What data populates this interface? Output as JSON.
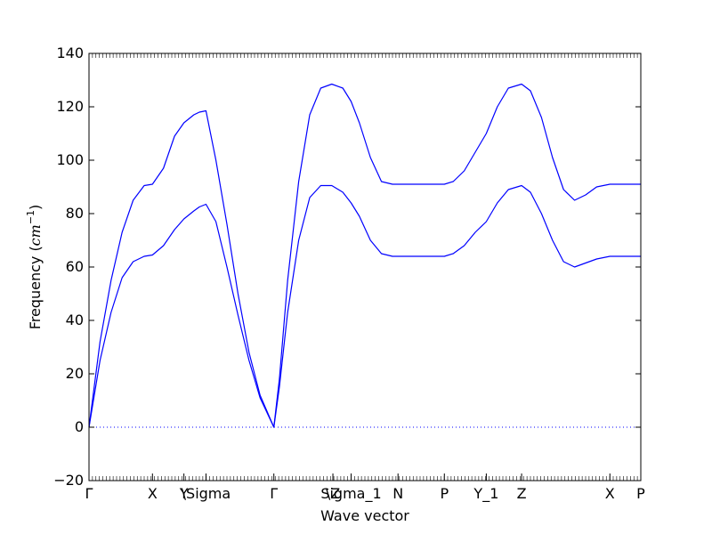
{
  "chart_data": {
    "type": "line",
    "xlabel": "Wave vector",
    "ylabel": "Frequency (",
    "ylabel_unit_base": "cm",
    "ylabel_unit_exp": "−1",
    "ylabel_close": ")",
    "ylim": [
      -20,
      140
    ],
    "yticks": [
      -20,
      0,
      20,
      40,
      60,
      80,
      100,
      120,
      140
    ],
    "x_ticks": [
      {
        "label": "Γ",
        "x": 0.0
      },
      {
        "label": "X",
        "x": 0.115
      },
      {
        "label": "Y",
        "x": 0.172
      },
      {
        "label": "\\Sigma",
        "x": 0.212
      },
      {
        "label": "Γ",
        "x": 0.335
      },
      {
        "label": "\\Z",
        "x": 0.442
      },
      {
        "label": "Sigma_1",
        "x": 0.475
      },
      {
        "label": "N",
        "x": 0.56
      },
      {
        "label": "P",
        "x": 0.644
      },
      {
        "label": "Y_1",
        "x": 0.72
      },
      {
        "label": "Z",
        "x": 0.784
      },
      {
        "label": "X",
        "x": 0.944
      },
      {
        "label": "P",
        "x": 1.0
      }
    ],
    "xlim": [
      0,
      1
    ],
    "zero_line": true,
    "series_color": "#0000ff",
    "series": [
      {
        "x": [
          0.0,
          0.02,
          0.04,
          0.06,
          0.08,
          0.1,
          0.115,
          0.135,
          0.155,
          0.172,
          0.19,
          0.2,
          0.212,
          0.23,
          0.25,
          0.27,
          0.29,
          0.31,
          0.335,
          0.345,
          0.36,
          0.38,
          0.4,
          0.42,
          0.44,
          0.46,
          0.475,
          0.49,
          0.51,
          0.53,
          0.55,
          0.56,
          0.6,
          0.644,
          0.66,
          0.68,
          0.7,
          0.72,
          0.74,
          0.76,
          0.784,
          0.8,
          0.82,
          0.84,
          0.86,
          0.88,
          0.9,
          0.92,
          0.944,
          0.97,
          1.0
        ],
        "y": [
          0,
          32,
          55,
          73,
          85,
          90.5,
          91,
          97,
          109,
          114,
          117,
          118,
          118.5,
          100,
          76,
          50,
          28,
          12,
          0,
          18,
          55,
          92,
          117,
          127,
          128.5,
          127,
          122,
          114,
          101,
          92,
          91,
          91,
          91,
          91,
          92,
          96,
          103,
          110,
          120,
          127,
          128.5,
          126,
          116,
          101,
          89,
          85,
          87,
          90,
          91,
          91,
          91
        ]
      },
      {
        "x": [
          0.0,
          0.02,
          0.04,
          0.06,
          0.08,
          0.1,
          0.115,
          0.135,
          0.155,
          0.172,
          0.19,
          0.2,
          0.212,
          0.23,
          0.25,
          0.27,
          0.29,
          0.31,
          0.335,
          0.345,
          0.36,
          0.38,
          0.4,
          0.42,
          0.44,
          0.46,
          0.475,
          0.49,
          0.51,
          0.53,
          0.55,
          0.56,
          0.6,
          0.644,
          0.66,
          0.68,
          0.7,
          0.72,
          0.74,
          0.76,
          0.784,
          0.8,
          0.82,
          0.84,
          0.86,
          0.88,
          0.9,
          0.92,
          0.944,
          0.97,
          1.0
        ],
        "y": [
          0,
          25,
          43,
          56,
          62,
          64,
          64.5,
          68,
          74,
          78,
          81,
          82.5,
          83.5,
          77,
          60,
          42,
          25,
          11,
          0,
          15,
          43,
          70,
          86,
          90.5,
          90.5,
          88,
          84,
          79,
          70,
          65,
          64,
          64,
          64,
          64,
          65,
          68,
          73,
          77,
          84,
          89,
          90.5,
          88,
          80,
          70,
          62,
          60,
          61.5,
          63,
          64,
          64,
          64
        ]
      }
    ]
  }
}
